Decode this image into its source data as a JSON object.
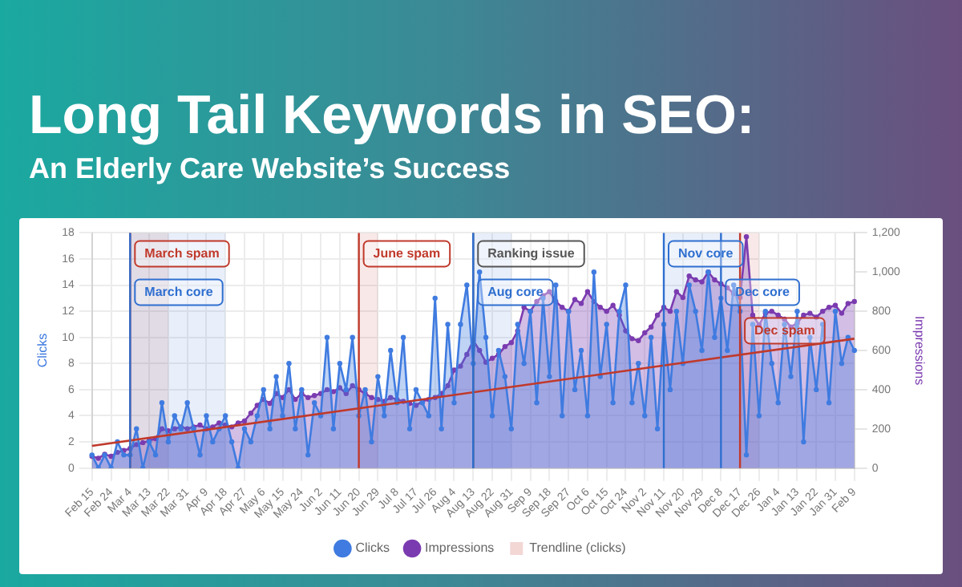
{
  "chart_data": {
    "type": "area",
    "title": "Long Tail Keywords in SEO:",
    "subtitle": "An Elderly Care Website’s Success",
    "ylabel": "Clicks",
    "y2label": "Impressions",
    "categories": [
      "Feb 15",
      null,
      null,
      "Feb 24",
      null,
      null,
      "Mar 4",
      null,
      null,
      "Mar 13",
      null,
      null,
      "Mar 22",
      null,
      null,
      "Mar 31",
      null,
      null,
      "Apr 9",
      null,
      null,
      "Apr 18",
      null,
      null,
      "Apr 27",
      null,
      null,
      "May 6",
      null,
      null,
      "May 15",
      null,
      null,
      "May 24",
      null,
      null,
      "Jun 2",
      null,
      null,
      "Jun 11",
      null,
      null,
      "Jun 20",
      null,
      null,
      "Jun 29",
      null,
      null,
      "Jul 8",
      null,
      null,
      "Jul 17",
      null,
      null,
      "Jul 26",
      null,
      null,
      "Aug 4",
      null,
      null,
      "Aug 13",
      null,
      null,
      "Aug 22",
      null,
      null,
      "Aug 31",
      null,
      null,
      "Sep 9",
      null,
      null,
      "Sep 18",
      null,
      null,
      "Sep 27",
      null,
      null,
      "Oct 6",
      null,
      null,
      "Oct 15",
      null,
      null,
      "Oct 24",
      null,
      null,
      "Nov 2",
      null,
      null,
      "Nov 11",
      null,
      null,
      "Nov 20",
      null,
      null,
      "Nov 29",
      null,
      null,
      "Dec 8",
      null,
      null,
      "Dec 17",
      null,
      null,
      "Dec 26",
      null,
      null,
      "Jan 4",
      null,
      null,
      "Jan 13",
      null,
      null,
      "Jan 22",
      null,
      null,
      "Jan 31",
      null,
      null,
      "Feb 9"
    ],
    "series": [
      {
        "name": "Clicks",
        "color": "#3f7be0",
        "marker": "circle",
        "values": [
          1,
          0,
          1,
          0,
          2,
          1,
          1,
          3,
          0,
          2,
          1,
          5,
          2,
          4,
          3,
          5,
          3,
          1,
          4,
          2,
          3,
          4,
          2,
          0,
          3,
          2,
          4,
          6,
          3,
          7,
          4,
          8,
          3,
          6,
          1,
          5,
          4,
          10,
          3,
          8,
          6,
          10,
          4,
          6,
          2,
          7,
          4,
          9,
          5,
          10,
          3,
          6,
          5,
          4,
          13,
          3,
          11,
          5,
          11,
          14,
          8,
          15,
          10,
          4,
          9,
          7,
          3,
          11,
          8,
          12,
          5,
          13,
          7,
          14,
          4,
          12,
          6,
          9,
          4,
          15,
          7,
          11,
          5,
          12,
          14,
          5,
          8,
          4,
          10,
          3,
          11,
          6,
          12,
          8,
          14,
          12,
          9,
          15,
          10,
          13,
          9,
          14,
          12,
          1,
          11,
          4,
          12,
          8,
          5,
          11,
          7,
          12,
          2,
          10,
          6,
          11,
          5,
          12,
          8,
          10,
          9
        ]
      },
      {
        "name": "Impressions",
        "axis": "y2",
        "color": "#7b3bb0",
        "marker": "circle",
        "values": [
          60,
          50,
          70,
          60,
          80,
          90,
          100,
          120,
          130,
          140,
          150,
          200,
          190,
          200,
          210,
          200,
          210,
          220,
          200,
          210,
          230,
          220,
          210,
          230,
          240,
          280,
          320,
          350,
          330,
          380,
          360,
          400,
          350,
          380,
          360,
          370,
          380,
          400,
          390,
          410,
          380,
          420,
          400,
          380,
          360,
          350,
          340,
          360,
          350,
          340,
          330,
          320,
          340,
          350,
          360,
          380,
          420,
          500,
          520,
          580,
          650,
          600,
          540,
          560,
          580,
          620,
          640,
          700,
          820,
          800,
          850,
          880,
          900,
          850,
          820,
          800,
          860,
          840,
          900,
          850,
          820,
          800,
          830,
          780,
          700,
          660,
          650,
          690,
          720,
          780,
          820,
          800,
          900,
          870,
          980,
          960,
          950,
          1000,
          960,
          940,
          920,
          890,
          870,
          1180,
          780,
          730,
          790,
          800,
          780,
          760,
          720,
          740,
          780,
          790,
          770,
          800,
          820,
          830,
          790,
          840,
          850
        ]
      },
      {
        "name": "Trendline (clicks)",
        "type": "line",
        "color": "#c0392b",
        "marker": "none",
        "values": [
          1.7,
          null,
          null,
          null,
          null,
          null,
          null,
          null,
          null,
          null,
          null,
          null,
          null,
          null,
          null,
          null,
          null,
          null,
          null,
          null,
          null,
          null,
          null,
          null,
          null,
          null,
          null,
          null,
          null,
          null,
          null,
          null,
          null,
          null,
          null,
          null,
          null,
          null,
          null,
          null,
          null,
          null,
          null,
          null,
          null,
          null,
          null,
          null,
          null,
          null,
          null,
          null,
          null,
          null,
          null,
          null,
          null,
          null,
          null,
          null,
          null,
          null,
          null,
          null,
          null,
          null,
          null,
          null,
          null,
          null,
          null,
          null,
          null,
          null,
          null,
          null,
          null,
          null,
          null,
          null,
          null,
          null,
          null,
          null,
          null,
          null,
          null,
          null,
          null,
          null,
          null,
          null,
          null,
          null,
          null,
          null,
          null,
          null,
          null,
          null,
          null,
          null,
          null,
          null,
          null,
          null,
          null,
          null,
          null,
          null,
          null,
          null,
          null,
          null,
          null,
          null,
          null,
          null,
          null,
          null,
          9.9
        ]
      }
    ],
    "ylim": [
      0,
      18
    ],
    "yticks": [
      0,
      2,
      4,
      6,
      8,
      10,
      12,
      14,
      16,
      18
    ],
    "y2lim": [
      0,
      1200
    ],
    "y2ticks": [
      0,
      200,
      400,
      600,
      800,
      {
        "value": 1000,
        "label": "1,000"
      },
      {
        "value": 1200,
        "label": "1,200"
      }
    ],
    "ref_lines": [
      {
        "axis": "x",
        "value": "Aug 13",
        "label": "Ranking issue",
        "color": "#555555"
      }
    ],
    "bands": [
      {
        "axis": "x",
        "from": "Mar 4",
        "to": "Mar 22",
        "label": "March spam",
        "color": "#c0392b"
      },
      {
        "axis": "x",
        "from": "Mar 4",
        "to": "Apr 18",
        "label": "March core",
        "color": "#2f6fd0"
      },
      {
        "axis": "x",
        "from": "Jun 20",
        "to": "Jun 29",
        "label": "June spam",
        "color": "#c0392b"
      },
      {
        "axis": "x",
        "from": "Aug 13",
        "to": "Aug 31",
        "label": "Aug core",
        "color": "#2f6fd0"
      },
      {
        "axis": "x",
        "from": "Nov 11",
        "to": "Dec 8",
        "label": "Nov core",
        "color": "#2f6fd0"
      },
      {
        "axis": "x",
        "from": "Dec 8",
        "to": "Dec 17",
        "label": "Dec core",
        "color": "#2f6fd0"
      },
      {
        "axis": "x",
        "from": "Dec 17",
        "to": "Dec 26",
        "label": "Dec spam",
        "color": "#c0392b"
      }
    ],
    "grid": true,
    "legend": "bottom"
  }
}
